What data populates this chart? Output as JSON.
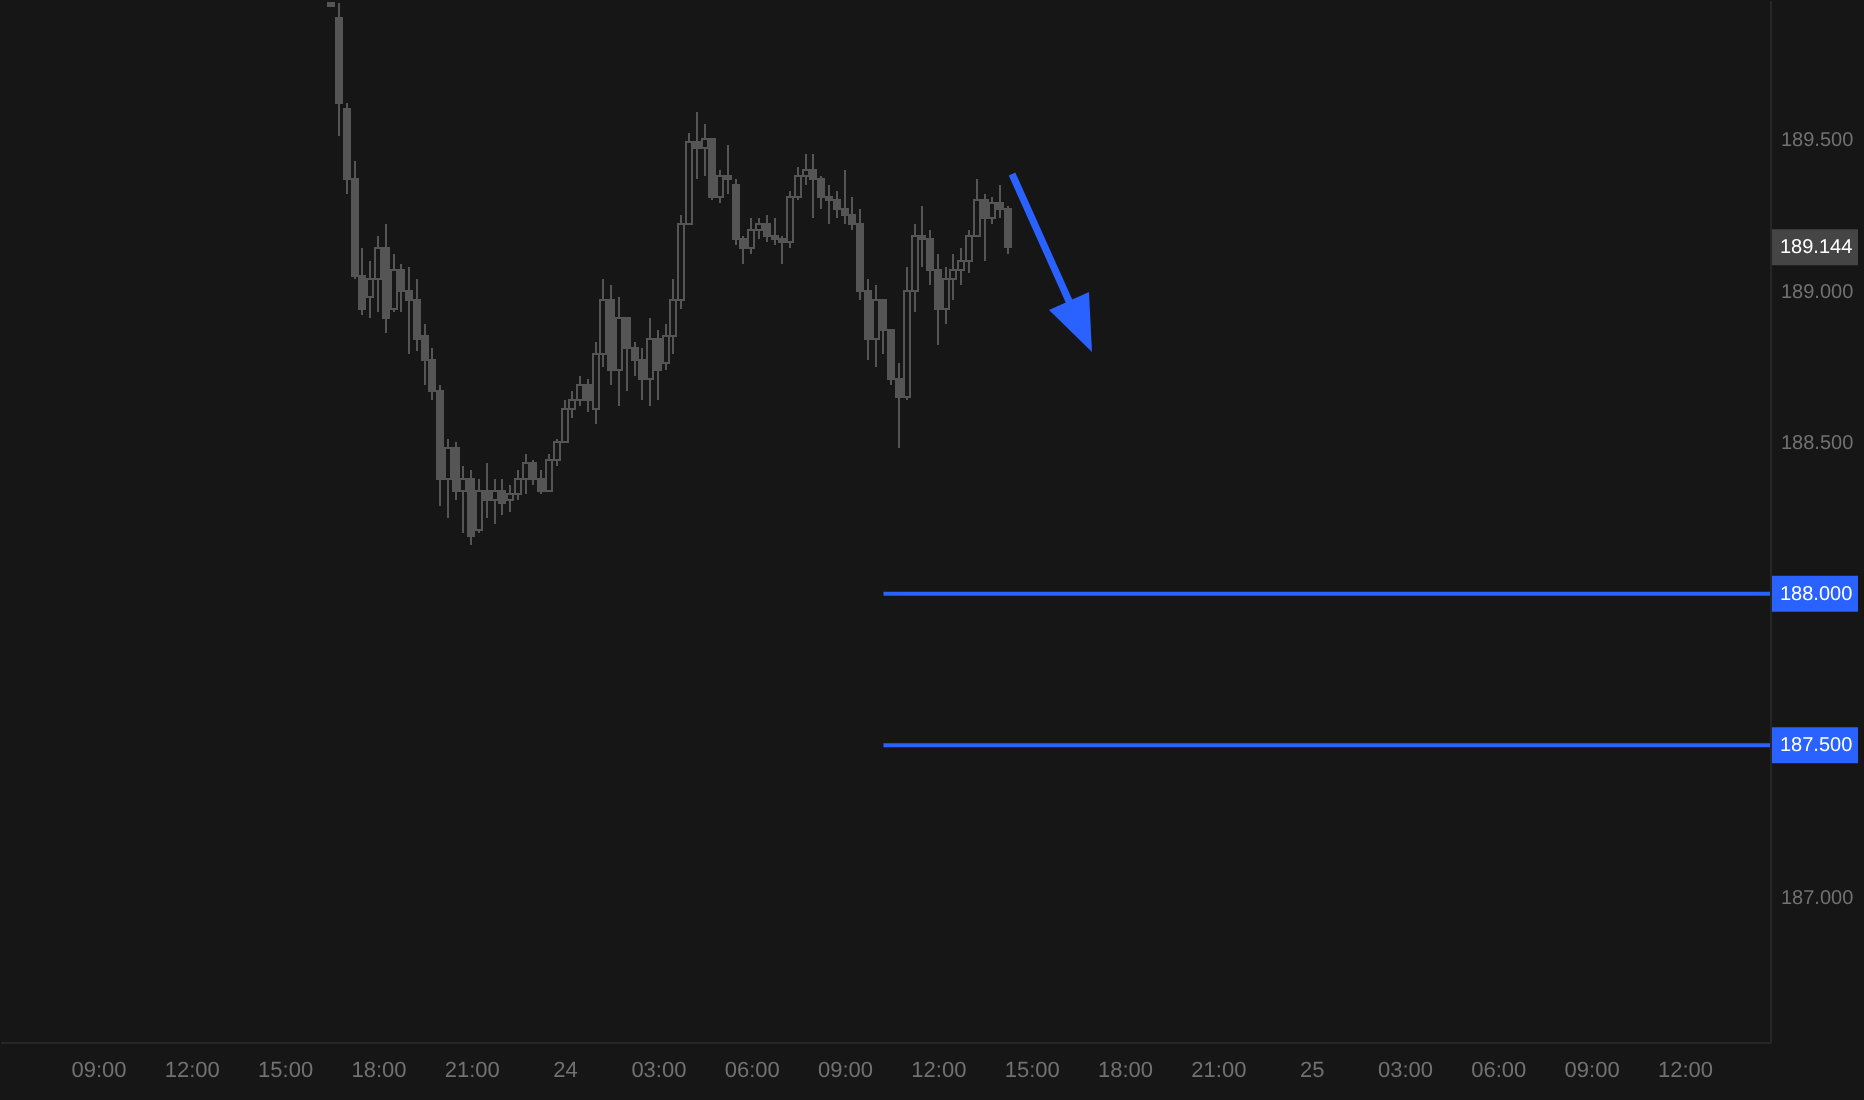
{
  "chart_data": {
    "type": "candlestick",
    "color": "#555555",
    "xlim": [
      "--01-23T05:51",
      "--01-25T14:45"
    ],
    "xticks": [
      {
        "value": "--01-23T09:00",
        "label": "09:00"
      },
      {
        "value": "--01-23T12:00",
        "label": "12:00"
      },
      {
        "value": "--01-23T15:00",
        "label": "15:00"
      },
      {
        "value": "--01-23T18:00",
        "label": "18:00"
      },
      {
        "value": "--01-23T21:00",
        "label": "21:00"
      },
      {
        "value": "--01-24T00:00",
        "label": "24"
      },
      {
        "value": "--01-24T03:00",
        "label": "03:00"
      },
      {
        "value": "--01-24T06:00",
        "label": "06:00"
      },
      {
        "value": "--01-24T09:00",
        "label": "09:00"
      },
      {
        "value": "--01-24T12:00",
        "label": "12:00"
      },
      {
        "value": "--01-24T15:00",
        "label": "15:00"
      },
      {
        "value": "--01-24T18:00",
        "label": "18:00"
      },
      {
        "value": "--01-24T21:00",
        "label": "21:00"
      },
      {
        "value": "--01-25T00:00",
        "label": "25"
      },
      {
        "value": "--01-25T03:00",
        "label": "03:00"
      },
      {
        "value": "--01-25T06:00",
        "label": "06:00"
      },
      {
        "value": "--01-25T09:00",
        "label": "09:00"
      },
      {
        "value": "--01-25T12:00",
        "label": "12:00"
      }
    ],
    "ylim": [
      186.52,
      189.96
    ],
    "yticks": [
      {
        "value": 187,
        "label": "187.000"
      },
      {
        "value": 188.5,
        "label": "188.500"
      },
      {
        "value": 189,
        "label": "189.000"
      },
      {
        "value": 189.5,
        "label": "189.500"
      }
    ],
    "annotations": [
      "189.144"
    ],
    "x": [
      "--01-23T16:30",
      "--01-23T16:45",
      "--01-23T17:00",
      "--01-23T17:15",
      "--01-23T17:30",
      "--01-23T17:45",
      "--01-23T18:00",
      "--01-23T18:15",
      "--01-23T18:30",
      "--01-23T18:45",
      "--01-23T19:00",
      "--01-23T19:15",
      "--01-23T19:30",
      "--01-23T19:45",
      "--01-23T20:00",
      "--01-23T20:15",
      "--01-23T20:30",
      "--01-23T20:45",
      "--01-23T21:00",
      "--01-23T21:15",
      "--01-23T21:30",
      "--01-23T21:45",
      "--01-23T22:00",
      "--01-23T22:15",
      "--01-23T22:30",
      "--01-23T22:45",
      "--01-23T23:00",
      "--01-23T23:15",
      "--01-23T23:30",
      "--01-23T23:45",
      "--01-24T00:00",
      "--01-24T00:15",
      "--01-24T00:30",
      "--01-24T00:45",
      "--01-24T01:00",
      "--01-24T01:15",
      "--01-24T01:30",
      "--01-24T01:45",
      "--01-24T02:00",
      "--01-24T02:15",
      "--01-24T02:30",
      "--01-24T02:45",
      "--01-24T03:00",
      "--01-24T03:15",
      "--01-24T03:30",
      "--01-24T03:45",
      "--01-24T04:00",
      "--01-24T04:15",
      "--01-24T04:30",
      "--01-24T04:45",
      "--01-24T05:00",
      "--01-24T05:15",
      "--01-24T05:30",
      "--01-24T05:45",
      "--01-24T06:00",
      "--01-24T06:15",
      "--01-24T06:30",
      "--01-24T06:45",
      "--01-24T07:00",
      "--01-24T07:15",
      "--01-24T07:30",
      "--01-24T07:45",
      "--01-24T08:00",
      "--01-24T08:15",
      "--01-24T08:30",
      "--01-24T08:45",
      "--01-24T09:00",
      "--01-24T09:15",
      "--01-24T09:30",
      "--01-24T09:45",
      "--01-24T10:00",
      "--01-24T10:15",
      "--01-24T10:30",
      "--01-24T10:45",
      "--01-24T11:00",
      "--01-24T11:15",
      "--01-24T11:30",
      "--01-24T11:45",
      "--01-24T12:00",
      "--01-24T12:15",
      "--01-24T12:30",
      "--01-24T12:45",
      "--01-24T13:00",
      "--01-24T13:15",
      "--01-24T13:30",
      "--01-24T13:45",
      "--01-24T14:00",
      "--01-24T14:15"
    ],
    "ohlc": [
      [
        189.95,
        189.95,
        189.94,
        189.94
      ],
      [
        189.9,
        189.95,
        189.51,
        189.62
      ],
      [
        189.6,
        189.62,
        189.32,
        189.37
      ],
      [
        189.37,
        189.43,
        189.04,
        189.05
      ],
      [
        189.05,
        189.14,
        188.92,
        188.94
      ],
      [
        188.98,
        189.1,
        188.91,
        189.04
      ],
      [
        189.04,
        189.18,
        188.93,
        189.14
      ],
      [
        189.14,
        189.22,
        188.86,
        188.91
      ],
      [
        188.94,
        189.12,
        188.93,
        189.07
      ],
      [
        189.07,
        189.09,
        188.93,
        189.0
      ],
      [
        189.0,
        189.08,
        188.79,
        188.97
      ],
      [
        188.97,
        189.04,
        188.8,
        188.84
      ],
      [
        188.85,
        188.89,
        188.69,
        188.77
      ],
      [
        188.77,
        188.81,
        188.64,
        188.67
      ],
      [
        188.67,
        188.69,
        188.29,
        188.38
      ],
      [
        188.38,
        188.51,
        188.25,
        188.48
      ],
      [
        188.48,
        188.5,
        188.31,
        188.34
      ],
      [
        188.34,
        188.42,
        188.2,
        188.38
      ],
      [
        188.38,
        188.41,
        188.16,
        188.19
      ],
      [
        188.21,
        188.38,
        188.2,
        188.34
      ],
      [
        188.34,
        188.43,
        188.25,
        188.31
      ],
      [
        188.31,
        188.38,
        188.23,
        188.34
      ],
      [
        188.34,
        188.38,
        188.26,
        188.3
      ],
      [
        188.31,
        188.36,
        188.27,
        188.33
      ],
      [
        188.33,
        188.41,
        188.31,
        188.38
      ],
      [
        188.38,
        188.46,
        188.33,
        188.43
      ],
      [
        188.43,
        188.44,
        188.36,
        188.38
      ],
      [
        188.38,
        188.41,
        188.33,
        188.34
      ],
      [
        188.34,
        188.46,
        188.34,
        188.44
      ],
      [
        188.44,
        188.51,
        188.42,
        188.5
      ],
      [
        188.5,
        188.64,
        188.5,
        188.61
      ],
      [
        188.61,
        188.67,
        188.58,
        188.64
      ],
      [
        188.64,
        188.72,
        188.62,
        188.69
      ],
      [
        188.69,
        188.71,
        188.6,
        188.64
      ],
      [
        188.61,
        188.83,
        188.56,
        188.79
      ],
      [
        188.79,
        189.04,
        188.75,
        188.97
      ],
      [
        188.97,
        189.02,
        188.69,
        188.74
      ],
      [
        188.74,
        188.98,
        188.62,
        188.91
      ],
      [
        188.91,
        188.91,
        188.67,
        188.81
      ],
      [
        188.81,
        188.83,
        188.72,
        188.77
      ],
      [
        188.77,
        188.81,
        188.64,
        188.71
      ],
      [
        188.71,
        188.91,
        188.62,
        188.84
      ],
      [
        188.84,
        188.87,
        188.64,
        188.74
      ],
      [
        188.76,
        188.89,
        188.74,
        188.85
      ],
      [
        188.85,
        189.04,
        188.79,
        188.97
      ],
      [
        188.97,
        189.25,
        188.94,
        189.22
      ],
      [
        189.22,
        189.52,
        189.22,
        189.49
      ],
      [
        189.49,
        189.59,
        189.37,
        189.47
      ],
      [
        189.47,
        189.55,
        189.38,
        189.5
      ],
      [
        189.5,
        189.5,
        189.3,
        189.31
      ],
      [
        189.31,
        189.4,
        189.29,
        189.38
      ],
      [
        189.38,
        189.48,
        189.32,
        189.37
      ],
      [
        189.35,
        189.37,
        189.15,
        189.17
      ],
      [
        189.17,
        189.18,
        189.09,
        189.14
      ],
      [
        189.14,
        189.24,
        189.12,
        189.2
      ],
      [
        189.2,
        189.24,
        189.17,
        189.22
      ],
      [
        189.22,
        189.25,
        189.16,
        189.18
      ],
      [
        189.18,
        189.24,
        189.15,
        189.17
      ],
      [
        189.17,
        189.18,
        189.09,
        189.16
      ],
      [
        189.16,
        189.33,
        189.14,
        189.31
      ],
      [
        189.31,
        189.41,
        189.3,
        189.38
      ],
      [
        189.38,
        189.45,
        189.35,
        189.4
      ],
      [
        189.4,
        189.45,
        189.24,
        189.37
      ],
      [
        189.37,
        189.38,
        189.27,
        189.31
      ],
      [
        189.31,
        189.35,
        189.22,
        189.3
      ],
      [
        189.3,
        189.33,
        189.24,
        189.27
      ],
      [
        189.27,
        189.4,
        189.22,
        189.25
      ],
      [
        189.25,
        189.31,
        189.2,
        189.22
      ],
      [
        189.22,
        189.27,
        188.97,
        189.0
      ],
      [
        189.0,
        189.04,
        188.77,
        188.84
      ],
      [
        188.84,
        189.02,
        188.75,
        188.97
      ],
      [
        188.97,
        188.97,
        188.79,
        188.87
      ],
      [
        188.87,
        188.87,
        188.69,
        188.71
      ],
      [
        188.71,
        188.76,
        188.48,
        188.65
      ],
      [
        188.65,
        189.08,
        188.64,
        189.0
      ],
      [
        189.0,
        189.22,
        188.93,
        189.18
      ],
      [
        189.18,
        189.28,
        189.08,
        189.17
      ],
      [
        189.17,
        189.2,
        189.02,
        189.07
      ],
      [
        189.07,
        189.12,
        188.82,
        188.94
      ],
      [
        188.94,
        189.08,
        188.89,
        189.04
      ],
      [
        189.04,
        189.12,
        188.97,
        189.07
      ],
      [
        189.07,
        189.14,
        189.02,
        189.1
      ],
      [
        189.1,
        189.2,
        189.06,
        189.18
      ],
      [
        189.18,
        189.37,
        189.18,
        189.3
      ],
      [
        189.3,
        189.32,
        189.1,
        189.24
      ],
      [
        189.24,
        189.31,
        189.22,
        189.29
      ],
      [
        189.29,
        189.35,
        189.24,
        189.27
      ],
      [
        189.27,
        189.28,
        189.12,
        189.144
      ]
    ],
    "series": [
      {
        "type": "line",
        "color": "#2962ff",
        "x": [
          "--01-24T10:15",
          "--01-25T14:45"
        ],
        "values": [
          188,
          188
        ],
        "value_labels": [
          null,
          "188.000"
        ]
      },
      {
        "type": "line",
        "color": "#2962ff",
        "x": [
          "--01-24T10:15",
          "--01-25T14:45"
        ],
        "values": [
          187.5,
          187.5
        ],
        "value_labels": [
          null,
          "187.500"
        ]
      }
    ]
  }
}
